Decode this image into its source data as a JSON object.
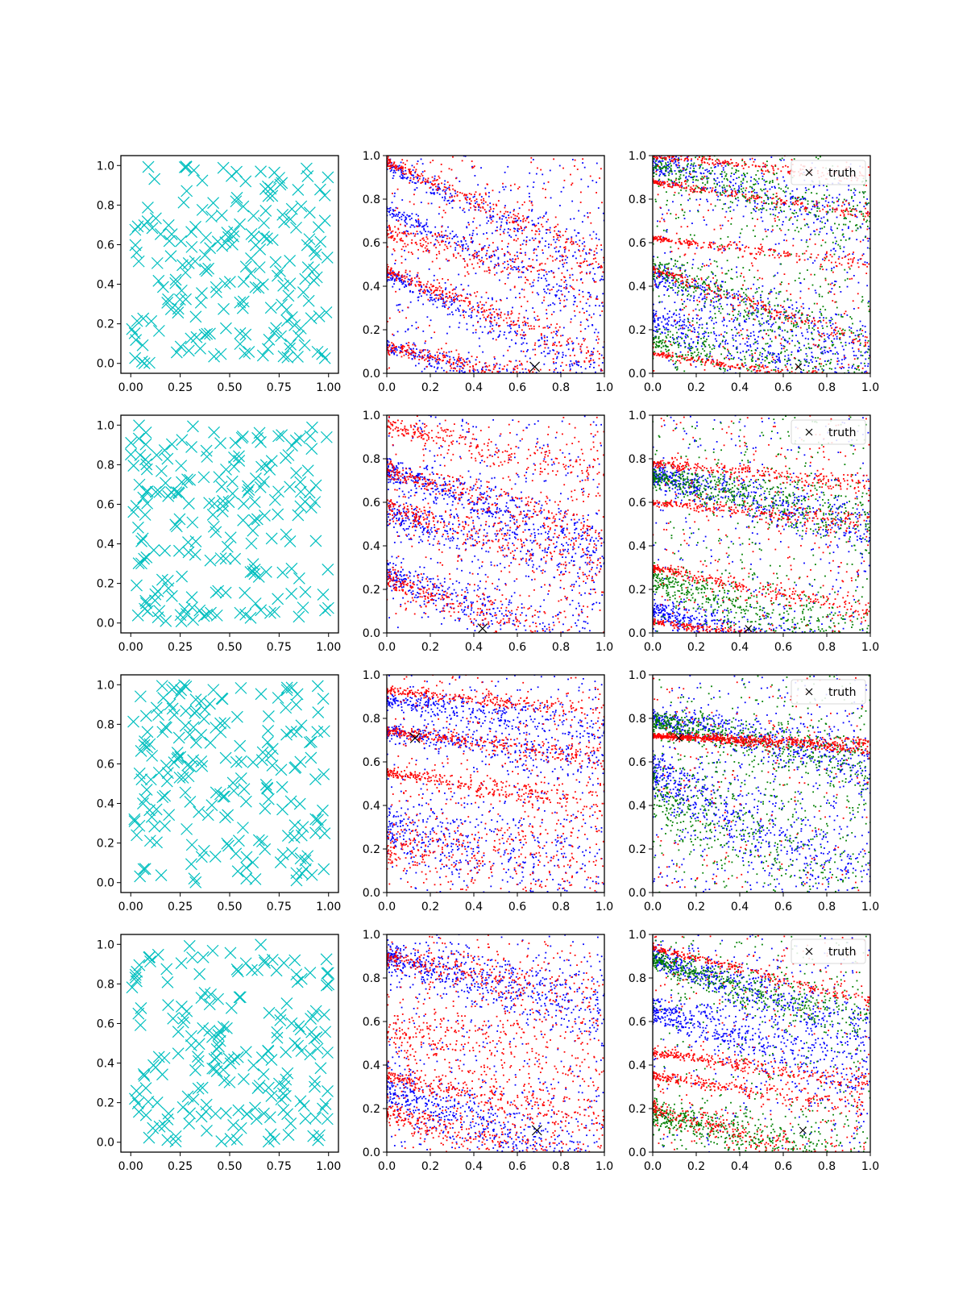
{
  "chart_data": [
    {
      "row": 0,
      "col": 0,
      "type": "scatter",
      "marker": "x",
      "marker_color": "#00bfbf",
      "xlim": [
        -0.05,
        1.05
      ],
      "ylim": [
        -0.05,
        1.05
      ],
      "xticks": [
        "0.00",
        "0.25",
        "0.50",
        "0.75",
        "1.00"
      ],
      "yticks": [
        "0.0",
        "0.2",
        "0.4",
        "0.6",
        "0.8",
        "1.0"
      ],
      "points": "uniform random sample of 200 points in [0,1]x[0,1]",
      "n_points": 200,
      "seed": 11
    },
    {
      "row": 0,
      "col": 1,
      "type": "scatter",
      "xlim": [
        0,
        1
      ],
      "ylim": [
        0,
        1
      ],
      "xticks": [
        "0.0",
        "0.2",
        "0.4",
        "0.6",
        "0.8",
        "1.0"
      ],
      "yticks": [
        "0.0",
        "0.2",
        "0.4",
        "0.6",
        "0.8",
        "1.0"
      ],
      "series": [
        {
          "color": "#0000ff",
          "bands": [
            [
              0.95,
              -0.45,
              0.03
            ],
            [
              0.45,
              -0.45,
              0.03
            ],
            [
              0.12,
              -0.25,
              0.03
            ],
            [
              0.75,
              -0.45,
              0.03
            ]
          ],
          "n": 1400
        },
        {
          "color": "#ff0000",
          "bands": [
            [
              0.97,
              -0.45,
              0.02
            ],
            [
              0.47,
              -0.4,
              0.02
            ],
            [
              0.12,
              -0.22,
              0.02
            ],
            [
              0.65,
              -0.25,
              0.04
            ]
          ],
          "n": 1400
        }
      ],
      "truth": {
        "x": 0.68,
        "y": 0.03
      }
    },
    {
      "row": 0,
      "col": 2,
      "type": "scatter",
      "xlim": [
        0,
        1
      ],
      "ylim": [
        0,
        1
      ],
      "xticks": [
        "0.0",
        "0.2",
        "0.4",
        "0.6",
        "0.8",
        "1.0"
      ],
      "yticks": [
        "0.0",
        "0.2",
        "0.4",
        "0.6",
        "0.8",
        "1.0"
      ],
      "series": [
        {
          "color": "#0000ff",
          "bands": [
            [
              0.97,
              -0.3,
              0.05
            ],
            [
              0.45,
              -0.35,
              0.05
            ],
            [
              0.25,
              -0.3,
              0.06
            ]
          ],
          "n": 1300
        },
        {
          "color": "#008000",
          "bands": [
            [
              0.95,
              -0.25,
              0.05
            ],
            [
              0.48,
              -0.35,
              0.05
            ],
            [
              0.15,
              -0.2,
              0.05
            ]
          ],
          "n": 1300
        },
        {
          "color": "#ff0000",
          "bands": [
            [
              1.0,
              -0.1,
              0.01
            ],
            [
              0.88,
              -0.15,
              0.01
            ],
            [
              0.62,
              -0.12,
              0.01
            ],
            [
              0.48,
              -0.35,
              0.015
            ],
            [
              0.09,
              -0.15,
              0.01
            ]
          ],
          "n": 1300
        }
      ],
      "truth": {
        "x": 0.67,
        "y": 0.03
      },
      "legend": {
        "label": "truth",
        "position": "upper right"
      }
    },
    {
      "row": 1,
      "col": 0,
      "type": "scatter",
      "marker": "x",
      "marker_color": "#00bfbf",
      "xlim": [
        -0.05,
        1.05
      ],
      "ylim": [
        -0.05,
        1.05
      ],
      "xticks": [
        "0.00",
        "0.25",
        "0.50",
        "0.75",
        "1.00"
      ],
      "yticks": [
        "0.0",
        "0.2",
        "0.4",
        "0.6",
        "0.8",
        "1.0"
      ],
      "points": "uniform random sample of 200 points in [0,1]x[0,1]",
      "n_points": 200,
      "seed": 23
    },
    {
      "row": 1,
      "col": 1,
      "type": "scatter",
      "xlim": [
        0,
        1
      ],
      "ylim": [
        0,
        1
      ],
      "xticks": [
        "0.0",
        "0.2",
        "0.4",
        "0.6",
        "0.8",
        "1.0"
      ],
      "yticks": [
        "0.0",
        "0.2",
        "0.4",
        "0.6",
        "0.8",
        "1.0"
      ],
      "series": [
        {
          "color": "#0000ff",
          "bands": [
            [
              0.75,
              -0.35,
              0.04
            ],
            [
              0.28,
              -0.4,
              0.05
            ],
            [
              0.55,
              -0.25,
              0.06
            ]
          ],
          "n": 1400
        },
        {
          "color": "#ff0000",
          "bands": [
            [
              0.75,
              -0.3,
              0.03
            ],
            [
              0.25,
              -0.35,
              0.04
            ],
            [
              0.95,
              -0.2,
              0.03
            ],
            [
              0.58,
              -0.3,
              0.03
            ]
          ],
          "n": 1400
        }
      ],
      "truth": {
        "x": 0.44,
        "y": 0.02
      }
    },
    {
      "row": 1,
      "col": 2,
      "type": "scatter",
      "xlim": [
        0,
        1
      ],
      "ylim": [
        0,
        1
      ],
      "xticks": [
        "0.0",
        "0.2",
        "0.4",
        "0.6",
        "0.8",
        "1.0"
      ],
      "yticks": [
        "0.0",
        "0.2",
        "0.4",
        "0.6",
        "0.8",
        "1.0"
      ],
      "series": [
        {
          "color": "#0000ff",
          "bands": [
            [
              0.72,
              -0.25,
              0.04
            ],
            [
              0.1,
              -0.25,
              0.04
            ]
          ],
          "n": 1300
        },
        {
          "color": "#008000",
          "bands": [
            [
              0.72,
              -0.2,
              0.04
            ],
            [
              0.25,
              -0.3,
              0.05
            ]
          ],
          "n": 1300
        },
        {
          "color": "#ff0000",
          "bands": [
            [
              0.05,
              -0.12,
              0.01
            ],
            [
              0.78,
              -0.1,
              0.015
            ],
            [
              0.6,
              -0.1,
              0.015
            ],
            [
              0.3,
              -0.2,
              0.015
            ]
          ],
          "n": 1300
        }
      ],
      "truth": {
        "x": 0.44,
        "y": 0.02
      },
      "legend": {
        "label": "truth",
        "position": "upper right"
      }
    },
    {
      "row": 2,
      "col": 0,
      "type": "scatter",
      "marker": "x",
      "marker_color": "#00bfbf",
      "xlim": [
        -0.05,
        1.05
      ],
      "ylim": [
        -0.05,
        1.05
      ],
      "xticks": [
        "0.00",
        "0.25",
        "0.50",
        "0.75",
        "1.00"
      ],
      "yticks": [
        "0.0",
        "0.2",
        "0.4",
        "0.6",
        "0.8",
        "1.0"
      ],
      "points": "uniform random sample of 200 points in [0,1]x[0,1]",
      "n_points": 200,
      "seed": 37
    },
    {
      "row": 2,
      "col": 1,
      "type": "scatter",
      "xlim": [
        0,
        1
      ],
      "ylim": [
        0,
        1
      ],
      "xticks": [
        "0.0",
        "0.2",
        "0.4",
        "0.6",
        "0.8",
        "1.0"
      ],
      "yticks": [
        "0.0",
        "0.2",
        "0.4",
        "0.6",
        "0.8",
        "1.0"
      ],
      "series": [
        {
          "color": "#0000ff",
          "bands": [
            [
              0.74,
              -0.15,
              0.03
            ],
            [
              0.88,
              -0.12,
              0.03
            ],
            [
              0.3,
              -0.2,
              0.1
            ]
          ],
          "n": 1300
        },
        {
          "color": "#ff0000",
          "bands": [
            [
              0.74,
              -0.12,
              0.015
            ],
            [
              0.93,
              -0.1,
              0.015
            ],
            [
              0.55,
              -0.15,
              0.02
            ],
            [
              0.2,
              -0.05,
              0.08
            ]
          ],
          "n": 1500
        }
      ],
      "truth": {
        "x": 0.13,
        "y": 0.71
      }
    },
    {
      "row": 2,
      "col": 2,
      "type": "scatter",
      "xlim": [
        0,
        1
      ],
      "ylim": [
        0,
        1
      ],
      "xticks": [
        "0.0",
        "0.2",
        "0.4",
        "0.6",
        "0.8",
        "1.0"
      ],
      "yticks": [
        "0.0",
        "0.2",
        "0.4",
        "0.6",
        "0.8",
        "1.0"
      ],
      "series": [
        {
          "color": "#0000ff",
          "bands": [
            [
              0.8,
              -0.2,
              0.04
            ],
            [
              0.55,
              -0.55,
              0.08
            ]
          ],
          "n": 1400
        },
        {
          "color": "#008000",
          "bands": [
            [
              0.78,
              -0.18,
              0.04
            ],
            [
              0.45,
              -0.35,
              0.12
            ]
          ],
          "n": 1200
        },
        {
          "color": "#ff0000",
          "bands": [
            [
              0.72,
              -0.05,
              0.01
            ]
          ],
          "n": 900
        }
      ],
      "truth": {
        "x": 0.12,
        "y": 0.71
      },
      "legend": {
        "label": "truth",
        "position": "upper right"
      }
    },
    {
      "row": 3,
      "col": 0,
      "type": "scatter",
      "marker": "x",
      "marker_color": "#00bfbf",
      "xlim": [
        -0.05,
        1.05
      ],
      "ylim": [
        -0.05,
        1.05
      ],
      "xticks": [
        "0.00",
        "0.25",
        "0.50",
        "0.75",
        "1.00"
      ],
      "yticks": [
        "0.0",
        "0.2",
        "0.4",
        "0.6",
        "0.8",
        "1.0"
      ],
      "points": "uniform random sample of 200 points in [0,1]x[0,1]",
      "n_points": 200,
      "seed": 51
    },
    {
      "row": 3,
      "col": 1,
      "type": "scatter",
      "xlim": [
        0,
        1
      ],
      "ylim": [
        0,
        1
      ],
      "xticks": [
        "0.0",
        "0.2",
        "0.4",
        "0.6",
        "0.8",
        "1.0"
      ],
      "yticks": [
        "0.0",
        "0.2",
        "0.4",
        "0.6",
        "0.8",
        "1.0"
      ],
      "series": [
        {
          "color": "#0000ff",
          "bands": [
            [
              0.3,
              -0.4,
              0.07
            ],
            [
              0.9,
              -0.25,
              0.05
            ]
          ],
          "n": 1400
        },
        {
          "color": "#ff0000",
          "bands": [
            [
              0.18,
              -0.25,
              0.04
            ],
            [
              0.35,
              -0.2,
              0.03
            ],
            [
              0.9,
              -0.2,
              0.04
            ],
            [
              0.55,
              -0.15,
              0.08
            ]
          ],
          "n": 1500
        }
      ],
      "truth": {
        "x": 0.69,
        "y": 0.1
      }
    },
    {
      "row": 3,
      "col": 2,
      "type": "scatter",
      "xlim": [
        0,
        1
      ],
      "ylim": [
        0,
        1
      ],
      "xticks": [
        "0.0",
        "0.2",
        "0.4",
        "0.6",
        "0.8",
        "1.0"
      ],
      "yticks": [
        "0.0",
        "0.2",
        "0.4",
        "0.6",
        "0.8",
        "1.0"
      ],
      "series": [
        {
          "color": "#0000ff",
          "bands": [
            [
              0.9,
              -0.35,
              0.04
            ],
            [
              0.65,
              -0.3,
              0.05
            ]
          ],
          "n": 1300
        },
        {
          "color": "#008000",
          "bands": [
            [
              0.88,
              -0.3,
              0.04
            ],
            [
              0.18,
              -0.25,
              0.05
            ]
          ],
          "n": 1300
        },
        {
          "color": "#ff0000",
          "bands": [
            [
              0.94,
              -0.25,
              0.01
            ],
            [
              0.35,
              -0.15,
              0.015
            ],
            [
              0.46,
              -0.15,
              0.015
            ],
            [
              0.2,
              -0.3,
              0.03
            ]
          ],
          "n": 1300
        }
      ],
      "truth": {
        "x": 0.69,
        "y": 0.1
      },
      "legend": {
        "label": "truth",
        "position": "upper right"
      }
    }
  ]
}
